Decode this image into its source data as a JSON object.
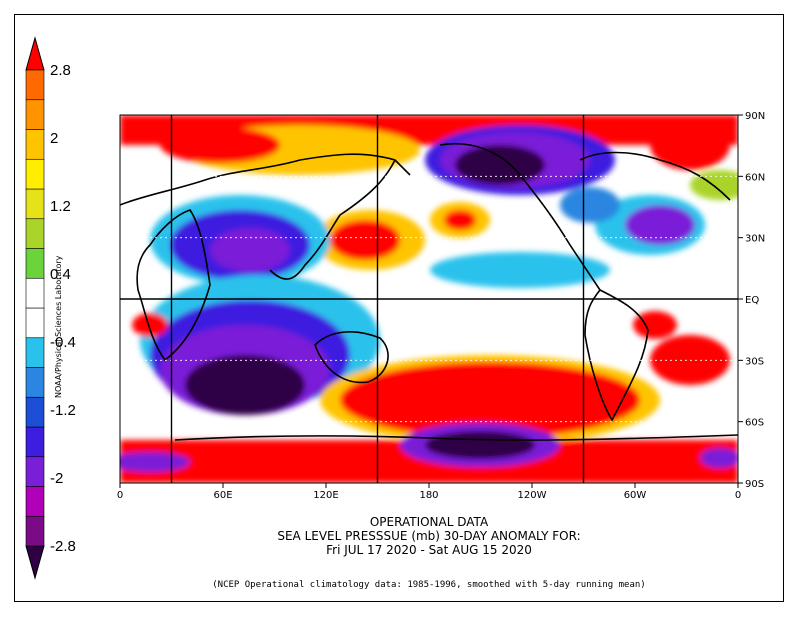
{
  "map": {
    "lon_labels": [
      "0",
      "60E",
      "120E",
      "180",
      "120W",
      "60W",
      "0"
    ],
    "lat_labels": [
      "90N",
      "60N",
      "30N",
      "EQ",
      "30S",
      "60S",
      "90S"
    ]
  },
  "colorbar": {
    "labels": [
      "2.8",
      "2",
      "1.2",
      "0.4",
      "-0.4",
      "-1.2",
      "-2",
      "-2.8"
    ],
    "colors": [
      "#2e0044",
      "#7c0a86",
      "#b000b8",
      "#7a1fd8",
      "#3d1ee0",
      "#1c4ed6",
      "#2a86e0",
      "#2ac2ec",
      "#ffffff",
      "#ffffff",
      "#6ad43a",
      "#aad42a",
      "#e6e21a",
      "#ffee00",
      "#ffc400",
      "#ff9300",
      "#ff6a00",
      "#ff0000"
    ]
  },
  "credit": "NOAA/Physical Sciences Laboratory",
  "caption": {
    "line1": "OPERATIONAL DATA",
    "line2": "SEA LEVEL PRESSSUE (mb)   30-DAY ANOMALY FOR:",
    "line3": "Fri JUL 17 2020 - Sat AUG 15 2020"
  },
  "note": "(NCEP Operational climatology data: 1985-1996, smoothed with 5-day running mean)"
}
